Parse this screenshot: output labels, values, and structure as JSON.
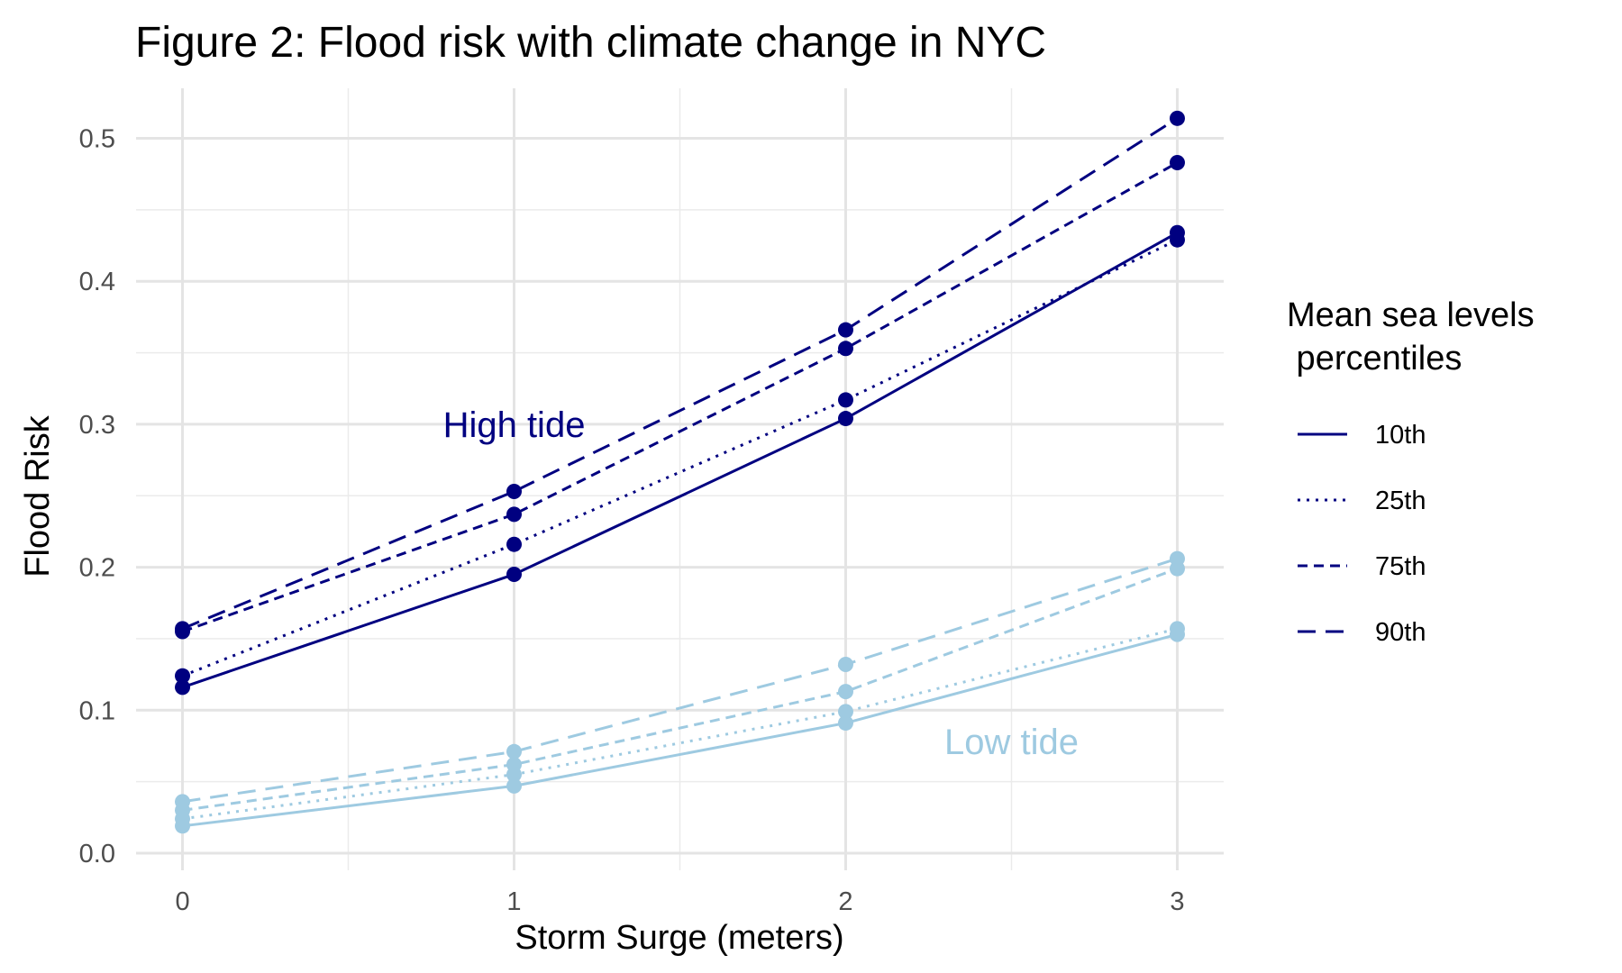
{
  "chart_data": {
    "type": "line",
    "title": "Figure 2: Flood risk with climate change in NYC",
    "xlabel": "Storm Surge (meters)",
    "ylabel": "Flood Risk",
    "x": [
      0,
      1,
      2,
      3
    ],
    "x_ticks": [
      "0",
      "1",
      "2",
      "3"
    ],
    "xlim": [
      -0.14,
      3.14
    ],
    "ylim": [
      -0.012,
      0.535
    ],
    "y_ticks": [
      "0.0",
      "0.1",
      "0.2",
      "0.3",
      "0.4",
      "0.5"
    ],
    "grid": true,
    "legend": {
      "title_lines": [
        "Mean sea levels",
        " percentiles"
      ],
      "position": "right",
      "entries": [
        {
          "label": "10th",
          "dash": "solid"
        },
        {
          "label": "25th",
          "dash": "dotted"
        },
        {
          "label": "75th",
          "dash": "dashed"
        },
        {
          "label": "90th",
          "dash": "longdash"
        }
      ]
    },
    "groups": [
      {
        "label": "High tide",
        "color": "#000080",
        "label_at": {
          "x": 1.0,
          "y": 0.3
        },
        "series": [
          {
            "percentile": "10th",
            "dash": "solid",
            "values": [
              0.116,
              0.195,
              0.304,
              0.434
            ]
          },
          {
            "percentile": "25th",
            "dash": "dotted",
            "values": [
              0.124,
              0.216,
              0.317,
              0.429
            ]
          },
          {
            "percentile": "75th",
            "dash": "dashed",
            "values": [
              0.155,
              0.237,
              0.353,
              0.483
            ]
          },
          {
            "percentile": "90th",
            "dash": "longdash",
            "values": [
              0.157,
              0.253,
              0.366,
              0.514
            ]
          }
        ]
      },
      {
        "label": "Low tide",
        "color": "#9ecae1",
        "label_at": {
          "x": 2.5,
          "y": 0.078
        },
        "series": [
          {
            "percentile": "10th",
            "dash": "solid",
            "values": [
              0.019,
              0.047,
              0.091,
              0.153
            ]
          },
          {
            "percentile": "25th",
            "dash": "dotted",
            "values": [
              0.024,
              0.055,
              0.099,
              0.157
            ]
          },
          {
            "percentile": "75th",
            "dash": "dashed",
            "values": [
              0.03,
              0.062,
              0.113,
              0.199
            ]
          },
          {
            "percentile": "90th",
            "dash": "longdash",
            "values": [
              0.036,
              0.071,
              0.132,
              0.206
            ]
          }
        ]
      }
    ]
  }
}
